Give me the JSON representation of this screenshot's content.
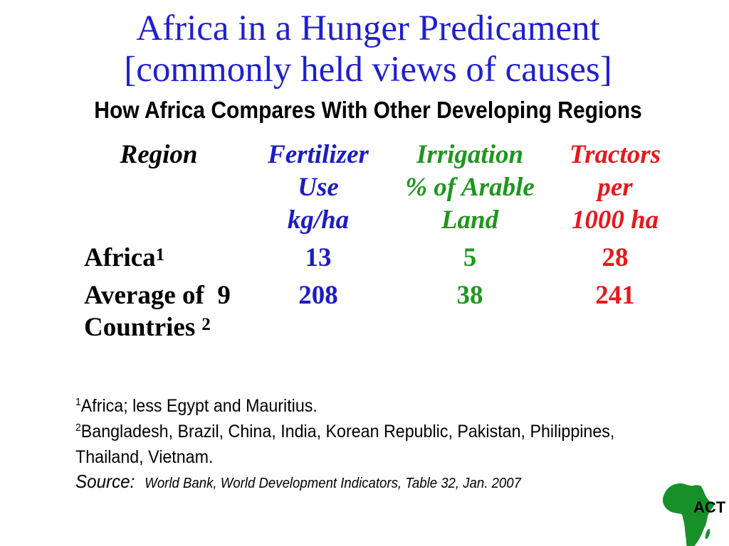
{
  "slide": {
    "title_lines": [
      "Africa in a Hunger Predicament",
      "[commonly held views of causes]"
    ],
    "subtitle": "How Africa Compares With Other Developing Regions"
  },
  "colors": {
    "title": "#1f1fd0",
    "fertilizer": "#1c1cc4",
    "irrigation": "#1f961f",
    "tractors": "#e8181c",
    "logo_green": "#17902a",
    "text": "#000000"
  },
  "table": {
    "headers": {
      "region": [
        "Region"
      ],
      "fertilizer": [
        "Fertilizer",
        "Use",
        "kg/ha"
      ],
      "irrigation": [
        "Irrigation",
        "% of Arable",
        "Land"
      ],
      "tractors": [
        "Tractors",
        "per",
        "1000 ha"
      ]
    },
    "rows": [
      {
        "region_lines": [
          "Africa"
        ],
        "note": "1",
        "fertilizer": 13,
        "irrigation": 5,
        "tractors": 28
      },
      {
        "region_lines": [
          "Average of  9",
          "Countries"
        ],
        "note": "2",
        "fertilizer": 208,
        "irrigation": 38,
        "tractors": 241
      }
    ]
  },
  "footnotes": [
    {
      "marker": "1",
      "lines": [
        "Africa; less Egypt and Mauritius."
      ]
    },
    {
      "marker": "2",
      "lines": [
        "Bangladesh, Brazil, China, India, Korean Republic, Pakistan, Philippines,",
        "Thailand, Vietnam."
      ]
    }
  ],
  "source": {
    "label": "Source:",
    "text": "World Bank, World Development Indicators, Table 32, Jan. 2007"
  },
  "logo": {
    "text": "ACT",
    "icon": "africa-map-icon"
  }
}
